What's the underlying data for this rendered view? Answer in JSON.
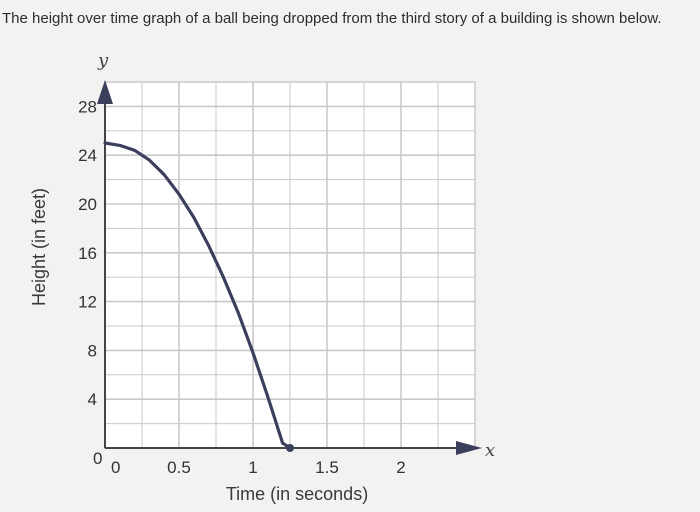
{
  "question": {
    "text": "The height over time graph of a ball being dropped from the third story of a building is shown below."
  },
  "chart_data": {
    "type": "line",
    "xlabel": "Time (in seconds)",
    "ylabel": "Height (in feet)",
    "x_axis_letter": "x",
    "y_axis_letter": "y",
    "xlim": [
      0,
      2.5
    ],
    "ylim": [
      0,
      30
    ],
    "x_ticks": [
      {
        "value": 0.5,
        "label": "0.5"
      },
      {
        "value": 1,
        "label": "1"
      },
      {
        "value": 1.5,
        "label": "1.5"
      },
      {
        "value": 2,
        "label": "2"
      }
    ],
    "y_ticks": [
      {
        "value": 4,
        "label": "4"
      },
      {
        "value": 8,
        "label": "8"
      },
      {
        "value": 12,
        "label": "12"
      },
      {
        "value": 16,
        "label": "16"
      },
      {
        "value": 20,
        "label": "20"
      },
      {
        "value": 24,
        "label": "24"
      },
      {
        "value": 28,
        "label": "28"
      }
    ],
    "origin_labels": {
      "x": "0",
      "y": "0"
    },
    "grid": true,
    "series": [
      {
        "x": [
          0,
          0.1,
          0.2,
          0.3,
          0.4,
          0.5,
          0.6,
          0.7,
          0.8,
          0.9,
          1.0,
          1.1,
          1.2,
          1.25
        ],
        "y": [
          25,
          24.8,
          24.4,
          23.6,
          22.4,
          20.8,
          18.9,
          16.6,
          14,
          11.1,
          7.8,
          4.2,
          0.4,
          0
        ]
      }
    ],
    "colors": {
      "curve": "#3b3f5c",
      "grid": "#c9c9c9",
      "axis": "#444444",
      "arrow": "#3b3f5c"
    }
  }
}
